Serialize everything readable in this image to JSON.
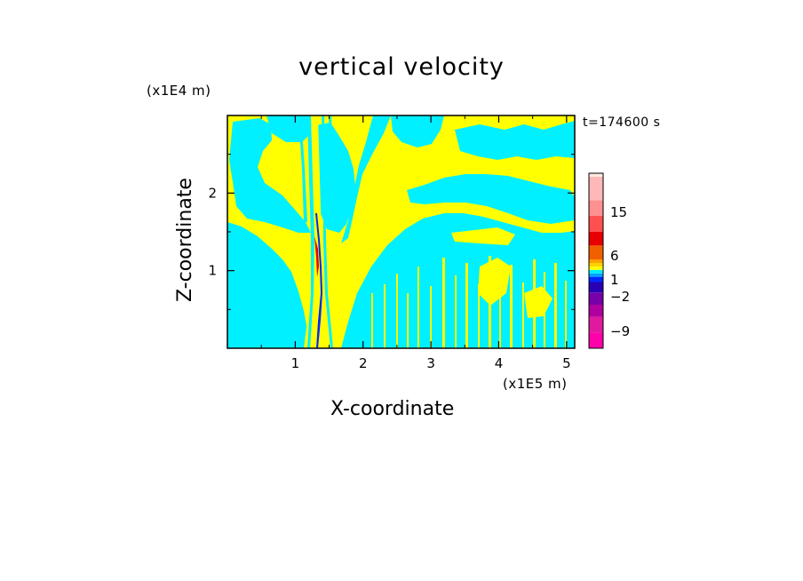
{
  "chart_data": {
    "type": "heatmap",
    "title": "vertical velocity",
    "xlabel": "X-coordinate",
    "ylabel": "Z-coordinate",
    "x_unit": "(x1E5 m)",
    "y_unit": "(x1E4 m)",
    "time_label": "t=174600 s",
    "xlim": [
      0,
      5.12
    ],
    "ylim": [
      0,
      3.0
    ],
    "x_ticks": [
      "1",
      "2",
      "3",
      "4",
      "5"
    ],
    "x_tick_values": [
      1,
      2,
      3,
      4,
      5
    ],
    "y_ticks": [
      "1",
      "2"
    ],
    "y_tick_values": [
      1,
      2
    ],
    "colorbar": {
      "tick_labels": [
        "15",
        "6",
        "1",
        "−2",
        "−9"
      ],
      "tick_levels": [
        15,
        6,
        1,
        -2,
        -9
      ],
      "levels": [
        -12,
        -9,
        -6,
        -4,
        -2,
        -1,
        -0.5,
        0,
        0.5,
        1,
        2,
        4,
        6,
        9,
        12,
        15,
        20
      ],
      "colors": [
        "#ff00aa",
        "#e0199f",
        "#b0009f",
        "#7700aa",
        "#2a00b5",
        "#0028ff",
        "#00a0ff",
        "#00f0ff",
        "#ffff00",
        "#ffd000",
        "#ffa000",
        "#f06000",
        "#e80000",
        "#ff5050",
        "#ff9090",
        "#ffb8b8",
        "#ffe8e0"
      ]
    },
    "dominant_fields": {
      "positive": "#ffff00",
      "negative": "#00f0ff",
      "strong": "#0028ff"
    }
  }
}
